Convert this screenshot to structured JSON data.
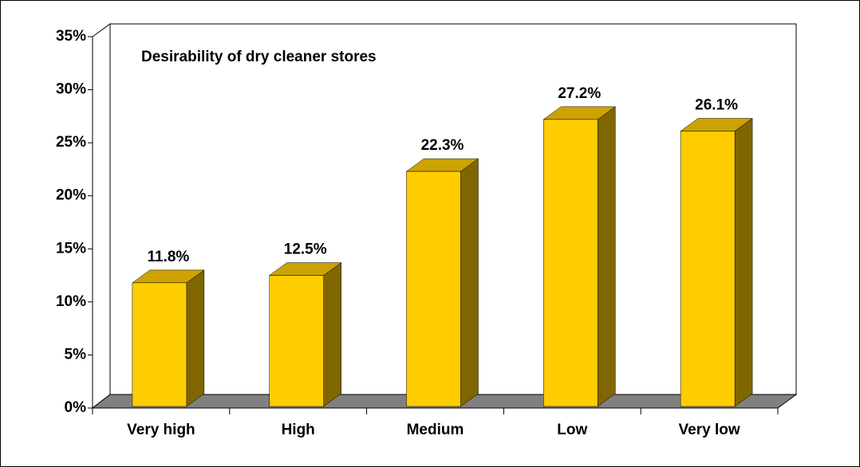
{
  "chart_data": {
    "type": "bar3d",
    "title": "Desirability of dry cleaner stores",
    "categories": [
      "Very high",
      "High",
      "Medium",
      "Low",
      "Very low"
    ],
    "values": [
      11.8,
      12.5,
      22.3,
      27.2,
      26.1
    ],
    "value_labels": [
      "11.8%",
      "12.5%",
      "22.3%",
      "27.2%",
      "26.1%"
    ],
    "color": "#FFCC00",
    "ylim": [
      0,
      35
    ],
    "yticks": [
      {
        "value": 0,
        "label": "0%"
      },
      {
        "value": 5,
        "label": "5%"
      },
      {
        "value": 10,
        "label": "10%"
      },
      {
        "value": 15,
        "label": "15%"
      },
      {
        "value": 20,
        "label": "20%"
      },
      {
        "value": 25,
        "label": "25%"
      },
      {
        "value": 30,
        "label": "30%"
      },
      {
        "value": 35,
        "label": "35%"
      }
    ]
  }
}
